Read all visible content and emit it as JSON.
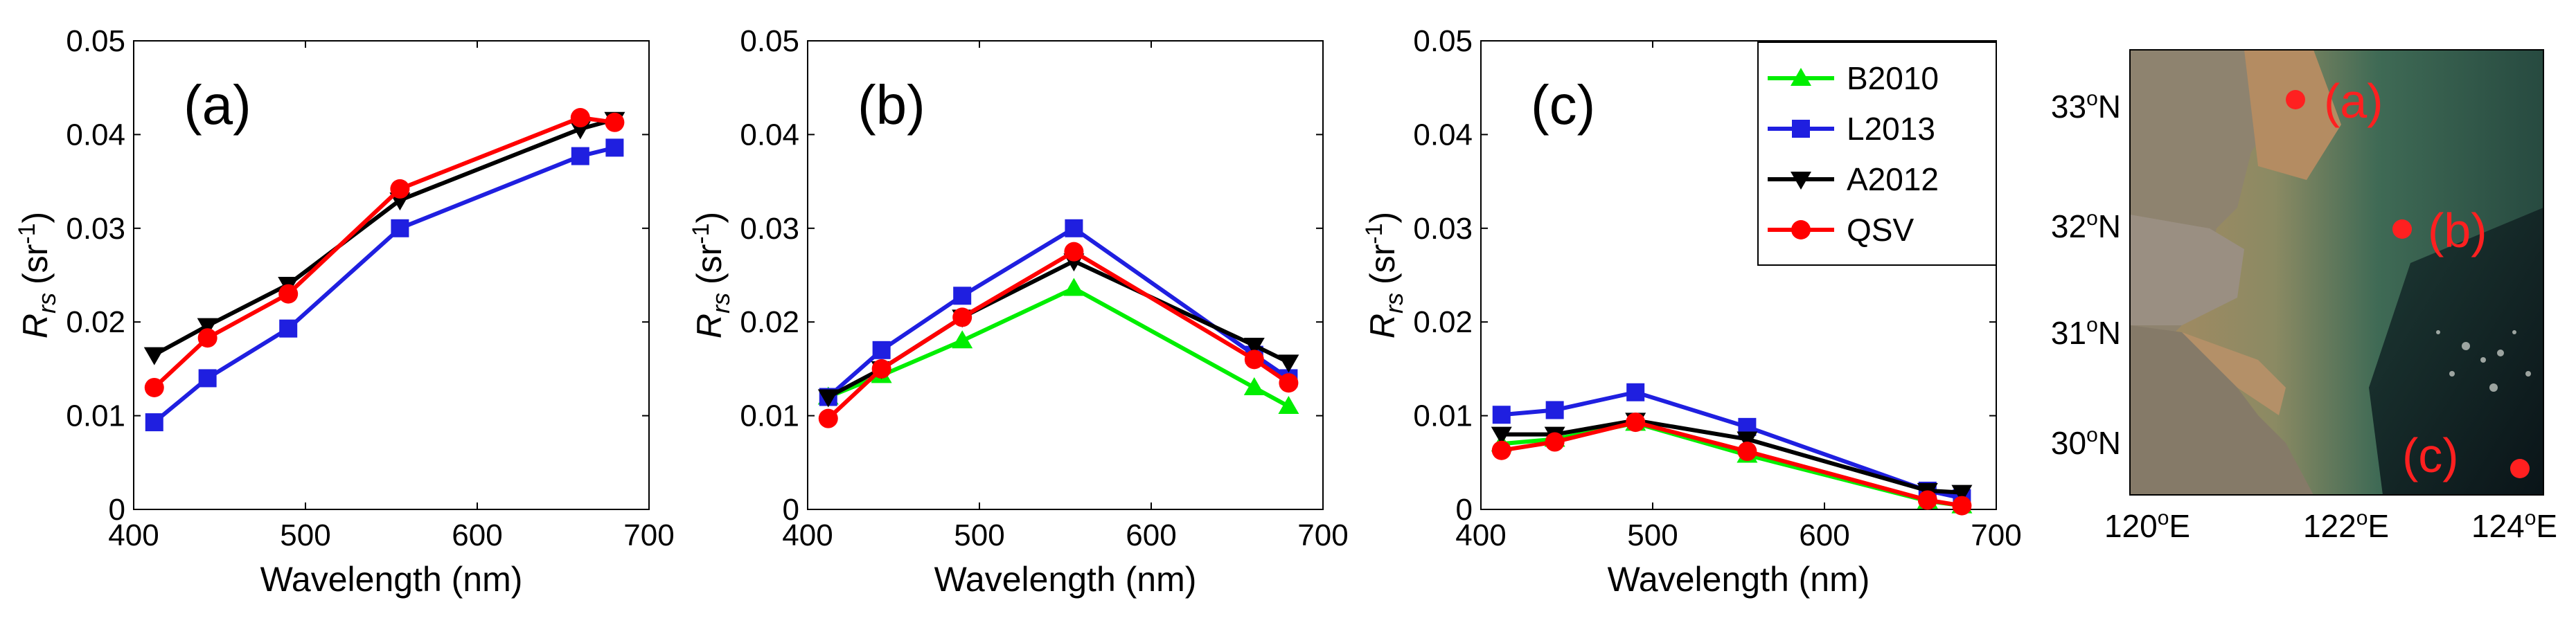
{
  "chart_data": [
    {
      "type": "line",
      "panel_label": "(a)",
      "title": "",
      "xlabel": "Wavelength (nm)",
      "ylabel_main": "R",
      "ylabel_sub": "rs",
      "ylabel_unit_open": "(sr",
      "ylabel_unit_sup": "-1",
      "ylabel_unit_close": ")",
      "xlim": [
        400,
        700
      ],
      "ylim": [
        0,
        0.05
      ],
      "xticks": [
        "400",
        "500",
        "600",
        "700"
      ],
      "yticks": [
        "0",
        "0.01",
        "0.02",
        "0.03",
        "0.04",
        "0.05"
      ],
      "x": [
        412,
        443,
        490,
        555,
        660,
        680
      ],
      "series": [
        {
          "name": "L2013",
          "color": "#1f1fe0",
          "marker": "square",
          "values": [
            0.0093,
            0.014,
            0.0193,
            0.03,
            0.0377,
            0.0386
          ]
        },
        {
          "name": "A2012",
          "color": "#000000",
          "marker": "triangle-down",
          "values": [
            0.0165,
            0.0196,
            0.024,
            0.033,
            0.0406,
            0.0416
          ]
        },
        {
          "name": "QSV",
          "color": "#ff0000",
          "marker": "circle",
          "values": [
            0.013,
            0.0183,
            0.023,
            0.0342,
            0.0418,
            0.0413
          ]
        }
      ]
    },
    {
      "type": "line",
      "panel_label": "(b)",
      "title": "",
      "xlabel": "Wavelength (nm)",
      "ylabel_main": "R",
      "ylabel_sub": "rs",
      "ylabel_unit_open": "(sr",
      "ylabel_unit_sup": "-1",
      "ylabel_unit_close": ")",
      "xlim": [
        400,
        700
      ],
      "ylim": [
        0,
        0.05
      ],
      "xticks": [
        "400",
        "500",
        "600",
        "700"
      ],
      "yticks": [
        "0",
        "0.01",
        "0.02",
        "0.03",
        "0.04",
        "0.05"
      ],
      "x": [
        412,
        443,
        490,
        555,
        660,
        680
      ],
      "series": [
        {
          "name": "B2010",
          "color": "#00ee00",
          "marker": "triangle-up",
          "values": [
            0.012,
            0.0143,
            0.018,
            0.0236,
            0.013,
            0.011
          ]
        },
        {
          "name": "L2013",
          "color": "#1f1fe0",
          "marker": "square",
          "values": [
            0.012,
            0.017,
            0.0228,
            0.03,
            0.0165,
            0.014
          ]
        },
        {
          "name": "A2012",
          "color": "#000000",
          "marker": "triangle-down",
          "values": [
            0.012,
            0.015,
            0.0205,
            0.0265,
            0.0175,
            0.0157
          ]
        },
        {
          "name": "QSV",
          "color": "#ff0000",
          "marker": "circle",
          "values": [
            0.0097,
            0.015,
            0.0205,
            0.0275,
            0.016,
            0.0135
          ]
        }
      ]
    },
    {
      "type": "line",
      "panel_label": "(c)",
      "title": "",
      "xlabel": "Wavelength (nm)",
      "ylabel_main": "R",
      "ylabel_sub": "rs",
      "ylabel_unit_open": "(sr",
      "ylabel_unit_sup": "-1",
      "ylabel_unit_close": ")",
      "xlim": [
        400,
        700
      ],
      "ylim": [
        0,
        0.05
      ],
      "xticks": [
        "400",
        "500",
        "600",
        "700"
      ],
      "yticks": [
        "0",
        "0.01",
        "0.02",
        "0.03",
        "0.04",
        "0.05"
      ],
      "x": [
        412,
        443,
        490,
        555,
        660,
        680
      ],
      "series": [
        {
          "name": "B2010",
          "color": "#00ee00",
          "marker": "triangle-up",
          "values": [
            0.007,
            0.0075,
            0.0092,
            0.0058,
            0.0009,
            0.0004
          ]
        },
        {
          "name": "L2013",
          "color": "#1f1fe0",
          "marker": "square",
          "values": [
            0.0101,
            0.0106,
            0.0125,
            0.0088,
            0.002,
            0.0012
          ]
        },
        {
          "name": "A2012",
          "color": "#000000",
          "marker": "triangle-down",
          "values": [
            0.008,
            0.008,
            0.0095,
            0.0075,
            0.002,
            0.0018
          ]
        },
        {
          "name": "QSV",
          "color": "#ff0000",
          "marker": "circle",
          "values": [
            0.0063,
            0.0072,
            0.0093,
            0.0062,
            0.001,
            0.0004
          ]
        }
      ],
      "legend": {
        "placement": "top-right",
        "entries": [
          {
            "name": "B2010",
            "color": "#00ee00",
            "marker": "triangle-up"
          },
          {
            "name": "L2013",
            "color": "#1f1fe0",
            "marker": "square"
          },
          {
            "name": "A2012",
            "color": "#000000",
            "marker": "triangle-down"
          },
          {
            "name": "QSV",
            "color": "#ff0000",
            "marker": "circle"
          }
        ]
      }
    }
  ],
  "map": {
    "description_colors": {
      "land": "#8a7f6e",
      "turbid_water": "#b4946a",
      "green_water": "#2f5a4a",
      "deep_water": "#0f1f22",
      "dot_color": "#ff2020"
    },
    "latitude_labels": [
      {
        "deg": "33",
        "sup": "o",
        "dir": "N"
      },
      {
        "deg": "32",
        "sup": "o",
        "dir": "N"
      },
      {
        "deg": "31",
        "sup": "o",
        "dir": "N"
      },
      {
        "deg": "30",
        "sup": "o",
        "dir": "N"
      }
    ],
    "longitude_labels": [
      {
        "deg": "120",
        "sup": "o",
        "dir": "E"
      },
      {
        "deg": "122",
        "sup": "o",
        "dir": "E"
      },
      {
        "deg": "124",
        "sup": "o",
        "dir": "E"
      }
    ],
    "sites": [
      {
        "label": "(a)"
      },
      {
        "label": "(b)"
      },
      {
        "label": "(c)"
      }
    ]
  }
}
